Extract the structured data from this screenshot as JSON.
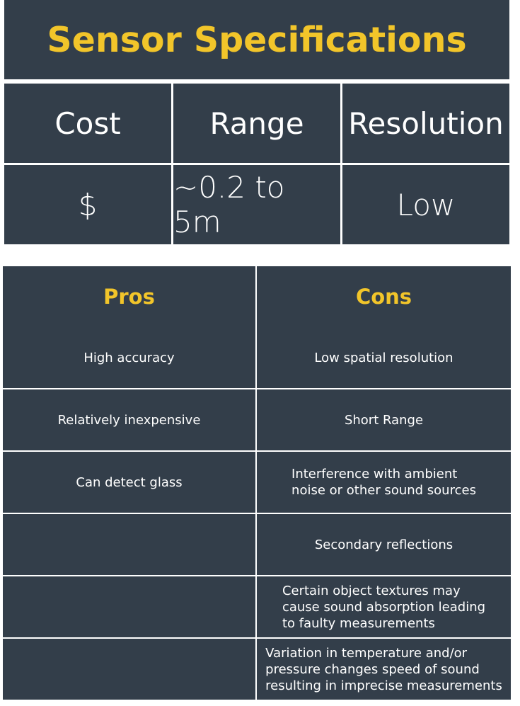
{
  "title": "Sensor Specifications",
  "specs": {
    "headers": [
      "Cost",
      "Range",
      "Resolution"
    ],
    "values": [
      "$",
      "~0.2 to 5m",
      "Low"
    ]
  },
  "pros_cons": {
    "headers": [
      "Pros",
      "Cons"
    ],
    "rows": [
      {
        "pro": "High accuracy",
        "con": "Low spatial resolution"
      },
      {
        "pro": "Relatively inexpensive",
        "con": "Short Range"
      },
      {
        "pro": "Can detect glass",
        "con": "Interference with ambient\nnoise or other sound sources"
      },
      {
        "pro": "",
        "con": "Secondary reflections"
      },
      {
        "pro": "",
        "con": "Certain object textures may\ncause sound absorption leading\nto faulty measurements"
      },
      {
        "pro": "",
        "con": "Variation in temperature and/or\npressure changes speed of sound\nresulting in imprecise measurements"
      }
    ]
  },
  "colors": {
    "panel": "#333e4a",
    "heading": "#f2c52a",
    "text": "#ffffff"
  }
}
